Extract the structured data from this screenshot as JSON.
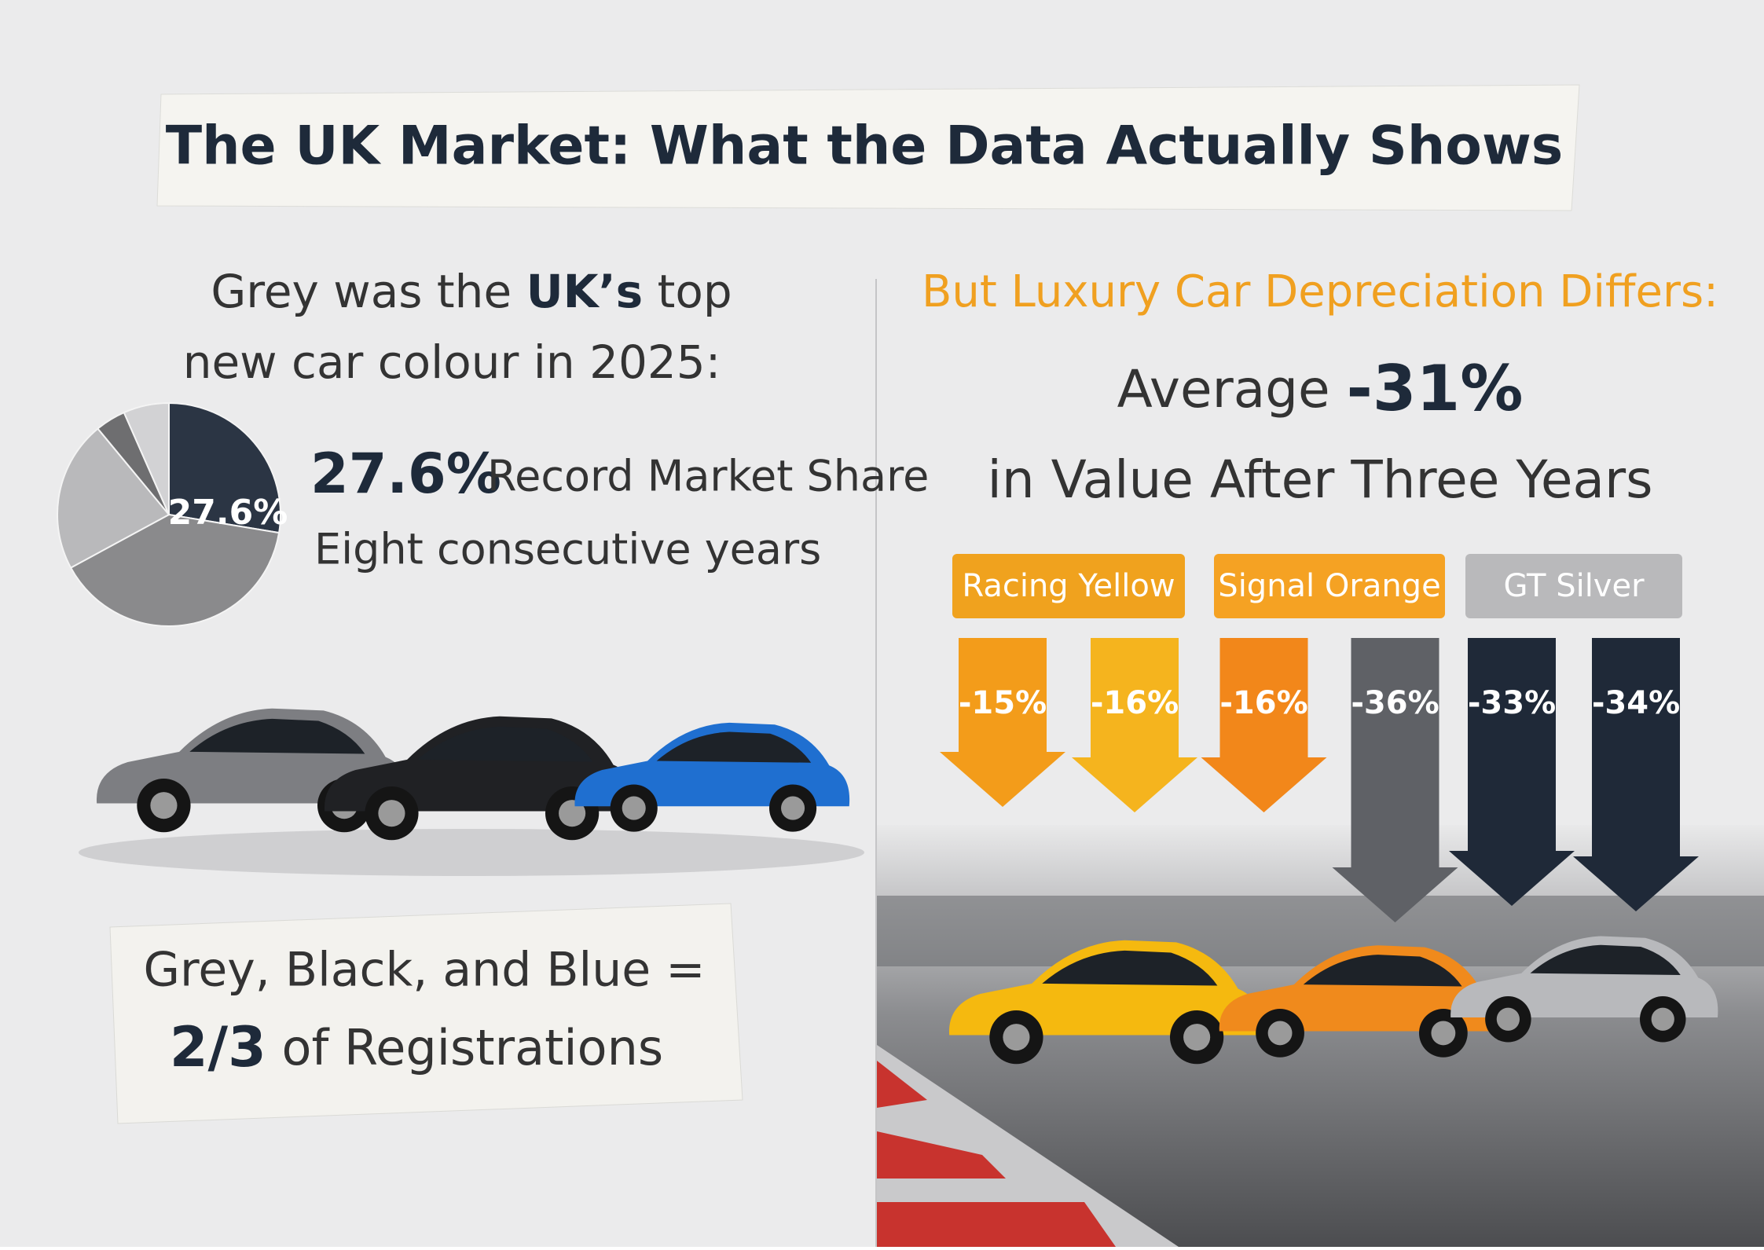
{
  "header": {
    "title": "The UK Market: What the Data Actually Shows"
  },
  "left": {
    "heading": {
      "line1_a": "Grey was the",
      "line1_b": "UK’s",
      "line1_c": "top",
      "line2": "new car colour in 2025:"
    },
    "pie": {
      "values": [
        27.6,
        39.5,
        21.9,
        4.4,
        6.6
      ],
      "colors": [
        "#2b3544",
        "#8a8a8c",
        "#b9b9bb",
        "#6e6e70",
        "#d2d2d4"
      ],
      "label": "27.6%"
    },
    "stat": {
      "value": "27.6%",
      "text": "Record Market Share",
      "sub": "Eight consecutive years"
    },
    "note": {
      "line1": "Grey, Black, and Blue =",
      "fraction": "2/3",
      "line2": "of Registrations"
    }
  },
  "right": {
    "heading": "But Luxury Car Depreciation Differs:",
    "average_label": "Average",
    "average": "-31%",
    "sub": "in Value After Three Years",
    "groups": [
      {
        "name": "Racing Yellow",
        "color": "#f0a21e",
        "arrows": [
          {
            "value": -15,
            "label": "-15%",
            "color": "#f39c1a"
          },
          {
            "value": -16,
            "label": "-16%",
            "color": "#f5b41e"
          }
        ]
      },
      {
        "name": "Signal Orange",
        "color": "#f5a223",
        "arrows": [
          {
            "value": -16,
            "label": "-16%",
            "color": "#f2871a"
          },
          {
            "value": -36,
            "label": "-36%",
            "color": "#5f6166"
          }
        ]
      },
      {
        "name": "GT Silver",
        "color": "#b9b9bb",
        "arrows": [
          {
            "value": -33,
            "label": "-33%",
            "color": "#1f2938"
          },
          {
            "value": -34,
            "label": "-34%",
            "color": "#1f2938"
          }
        ]
      }
    ]
  }
}
